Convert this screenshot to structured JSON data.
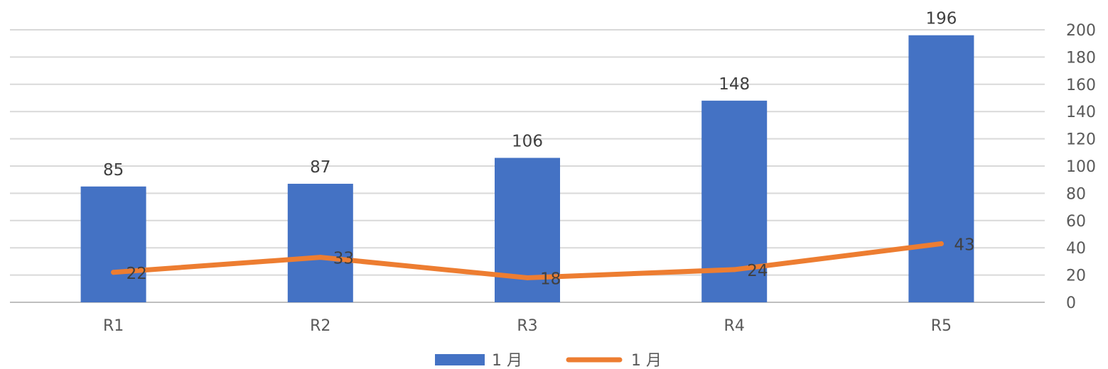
{
  "chart_data": {
    "type": "bar",
    "categories": [
      "R1",
      "R2",
      "R3",
      "R4",
      "R5"
    ],
    "series": [
      {
        "name": "1 月",
        "kind": "bar",
        "axis": "right",
        "color": "#4472C4",
        "values": [
          85,
          87,
          106,
          148,
          196
        ]
      },
      {
        "name": "1 月",
        "kind": "line",
        "axis": "right",
        "color": "#ED7D31",
        "values": [
          22,
          33,
          18,
          24,
          43
        ]
      }
    ],
    "ylim": [
      0,
      200
    ],
    "yticks": [
      "0",
      "20",
      "40",
      "60",
      "80",
      "100",
      "120",
      "140",
      "160",
      "180",
      "200"
    ],
    "y_axis_side": "right",
    "grid": true,
    "legend_position": "bottom",
    "title": "",
    "xlabel": "",
    "ylabel": ""
  }
}
